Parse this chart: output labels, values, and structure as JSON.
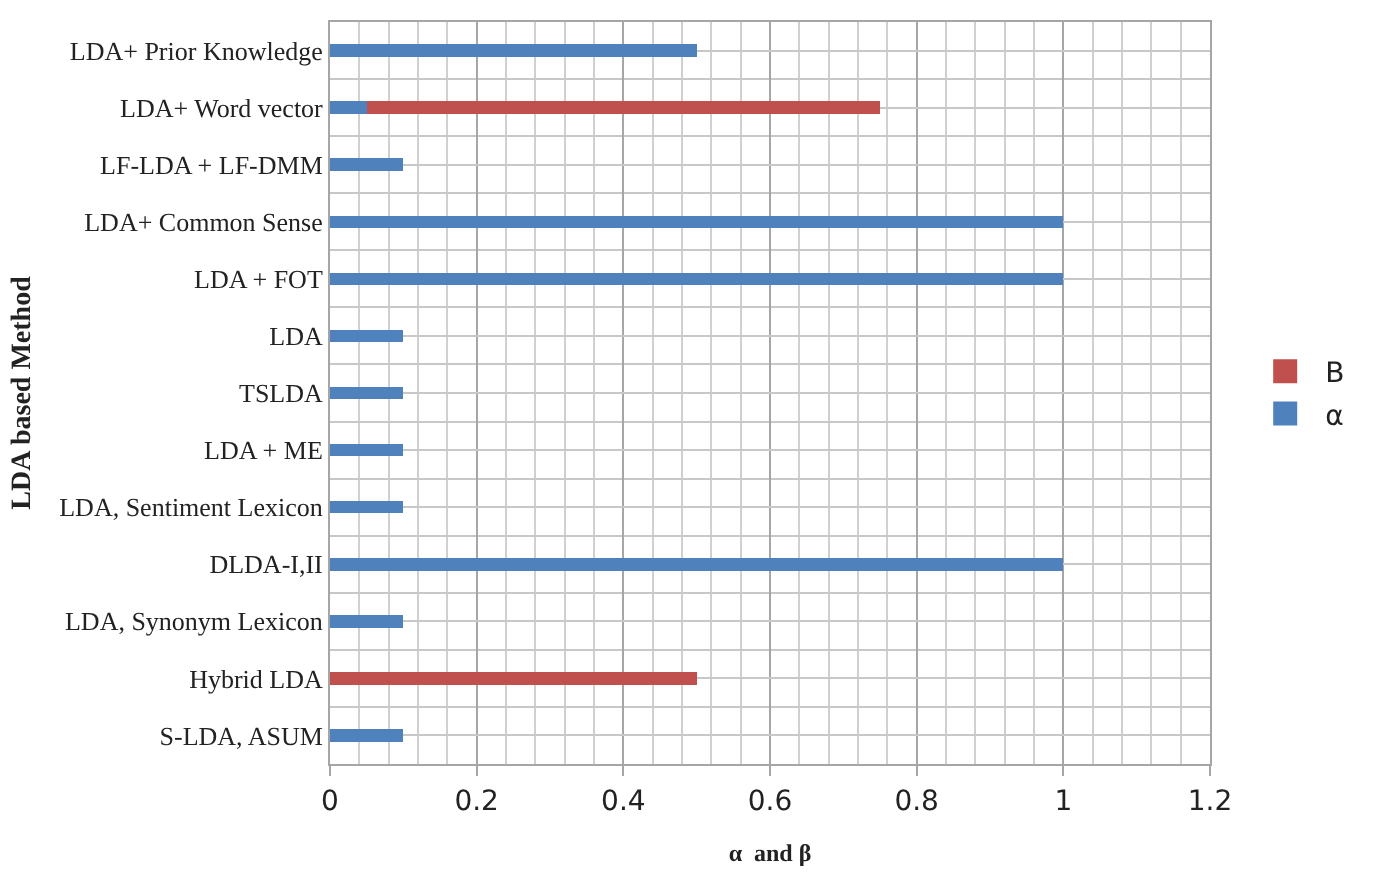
{
  "chart_data": {
    "type": "bar",
    "orientation": "horizontal",
    "stacked": true,
    "xlabel": "α  and β",
    "ylabel": "LDA based Method",
    "categories": [
      "LDA+ Prior Knowledge",
      "LDA+ Word vector",
      "LF-LDA + LF-DMM",
      "LDA+ Common Sense",
      "LDA + FOT",
      "LDA",
      "TSLDA",
      "LDA + ME",
      "LDA, Sentiment Lexicon",
      "DLDA-I,II",
      "LDA, Synonym Lexicon",
      "Hybrid LDA",
      "S-LDA, ASUM"
    ],
    "series": [
      {
        "name": "α",
        "color": "#4f81bd",
        "values": [
          0.5,
          0.05,
          0.1,
          1,
          1,
          0.1,
          0.1,
          0.1,
          0.1,
          1,
          0.1,
          null,
          0.1
        ]
      },
      {
        "name": "B",
        "color": "#c0504d",
        "values": [
          null,
          0.7,
          null,
          null,
          null,
          null,
          null,
          null,
          null,
          null,
          null,
          0.5,
          null
        ]
      }
    ],
    "xlim": [
      0,
      1.2
    ],
    "xticks": [
      0,
      0.2,
      0.4,
      0.6,
      0.8,
      1,
      1.2
    ],
    "grid": true,
    "legend": "right"
  }
}
